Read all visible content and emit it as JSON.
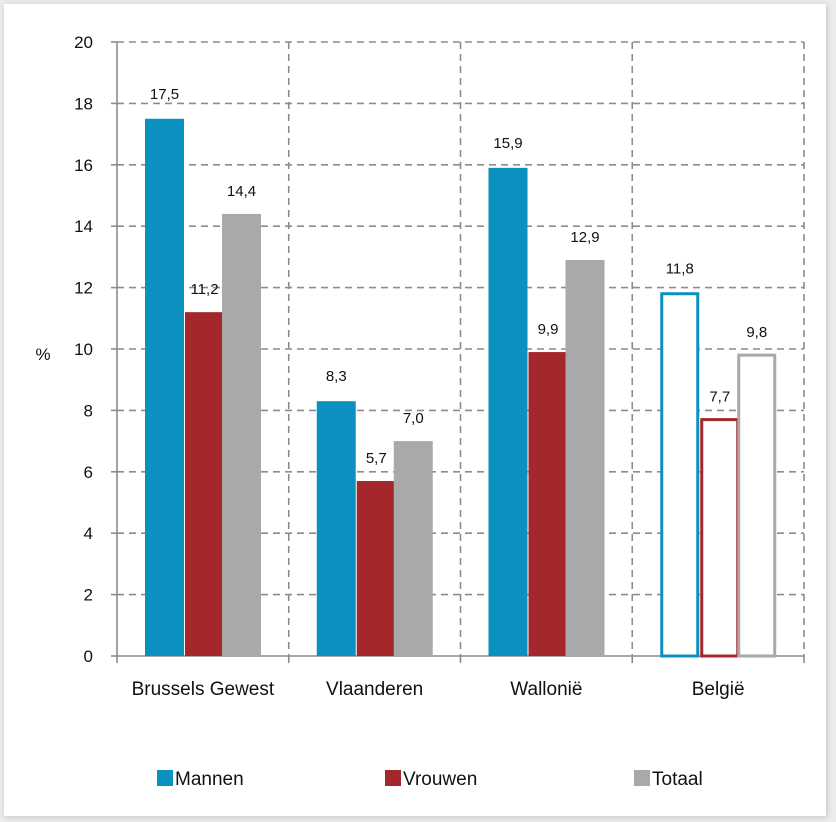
{
  "chart_data": {
    "type": "bar",
    "ylabel": "%",
    "ylim": [
      0,
      20
    ],
    "yticks": [
      0,
      2,
      4,
      6,
      8,
      10,
      12,
      14,
      16,
      18,
      20
    ],
    "categories": [
      "Brussels Gewest",
      "Vlaanderen",
      "Wallonië",
      "België"
    ],
    "series": [
      {
        "name": "Mannen",
        "values": [
          17.5,
          8.3,
          15.9,
          11.8
        ],
        "labels": [
          "17,5",
          "8,3",
          "15,9",
          "11,8"
        ],
        "color": "#0a91bf"
      },
      {
        "name": "Vrouwen",
        "values": [
          11.2,
          5.7,
          9.9,
          7.7
        ],
        "labels": [
          "11,2",
          "5,7",
          "9,9",
          "7,7"
        ],
        "color": "#a4282b"
      },
      {
        "name": "Totaal",
        "values": [
          14.4,
          7.0,
          12.9,
          9.8
        ],
        "labels": [
          "14,4",
          "7,0",
          "12,9",
          "9,8"
        ],
        "color": "#a9a9a9"
      }
    ],
    "outlined_categories": [
      "België"
    ],
    "grid": true,
    "legend_position": "bottom"
  }
}
